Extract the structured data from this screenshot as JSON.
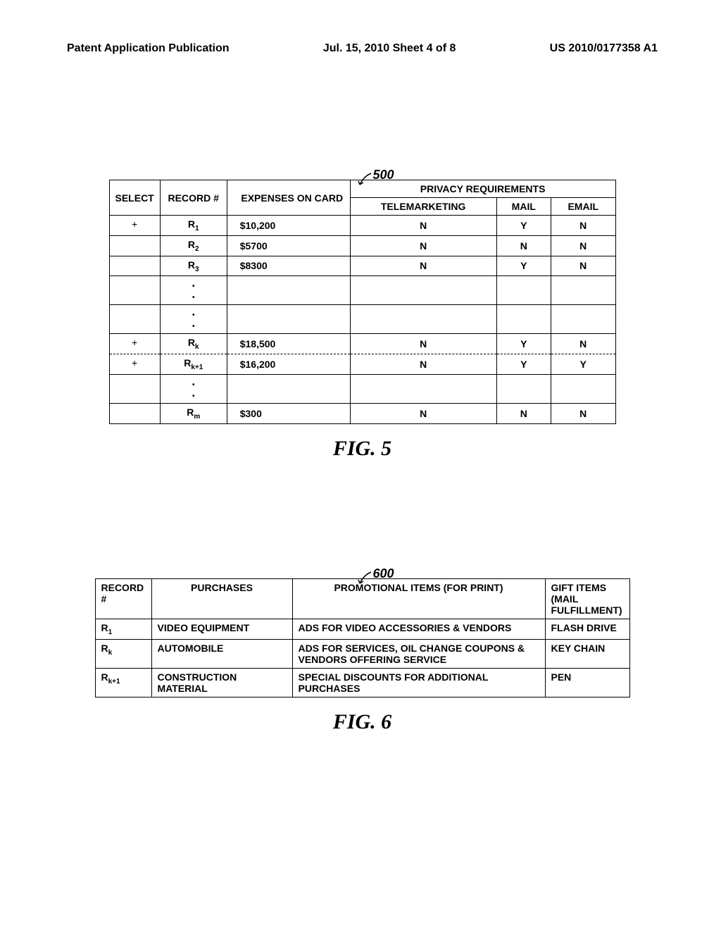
{
  "header": {
    "left": "Patent Application Publication",
    "center": "Jul. 15, 2010  Sheet 4 of 8",
    "right": "US 2010/0177358 A1"
  },
  "fig5": {
    "ref": "500",
    "caption": "FIG. 5",
    "columns": {
      "select": "SELECT",
      "record": "RECORD #",
      "expenses": "EXPENSES ON CARD",
      "privacy": "PRIVACY REQUIREMENTS",
      "tele": "TELEMARKETING",
      "mail": "MAIL",
      "email": "EMAIL"
    },
    "rows": [
      {
        "select": "+",
        "record_base": "R",
        "record_sub": "1",
        "expenses": "$10,200",
        "tele": "N",
        "mail": "Y",
        "email": "N",
        "dashed": true
      },
      {
        "select": "",
        "record_base": "R",
        "record_sub": "2",
        "expenses": "$5700",
        "tele": "N",
        "mail": "N",
        "email": "N",
        "dashed": false
      },
      {
        "select": "",
        "record_base": "R",
        "record_sub": "3",
        "expenses": "$8300",
        "tele": "N",
        "mail": "Y",
        "email": "N",
        "dashed": false
      },
      {
        "select": "",
        "record_base": "",
        "record_sub": "",
        "expenses": "",
        "tele": "",
        "mail": "",
        "email": "",
        "dashed": false,
        "vdots": true
      },
      {
        "select": "",
        "record_base": "",
        "record_sub": "",
        "expenses": "",
        "tele": "",
        "mail": "",
        "email": "",
        "dashed": false,
        "vdots": true
      },
      {
        "select": "+",
        "record_base": "R",
        "record_sub": "k",
        "expenses": "$18,500",
        "tele": "N",
        "mail": "Y",
        "email": "N",
        "dashed": true
      },
      {
        "select": "+",
        "record_base": "R",
        "record_sub": "k+1",
        "expenses": "$16,200",
        "tele": "N",
        "mail": "Y",
        "email": "Y",
        "dashed": true
      },
      {
        "select": "",
        "record_base": "",
        "record_sub": "",
        "expenses": "",
        "tele": "",
        "mail": "",
        "email": "",
        "dashed": false,
        "vdots": true
      },
      {
        "select": "",
        "record_base": "R",
        "record_sub": "m",
        "expenses": "$300",
        "tele": "N",
        "mail": "N",
        "email": "N",
        "dashed": false
      }
    ]
  },
  "fig6": {
    "ref": "600",
    "caption": "FIG. 6",
    "columns": {
      "record": "RECORD #",
      "purchases": "PURCHASES",
      "promo": "PROMOTIONAL ITEMS (FOR PRINT)",
      "gift": "GIFT ITEMS (MAIL FULFILLMENT)"
    },
    "rows": [
      {
        "record_base": "R",
        "record_sub": "1",
        "purchases": "VIDEO EQUIPMENT",
        "promo": "ADS FOR VIDEO ACCESSORIES & VENDORS",
        "gift": "FLASH DRIVE"
      },
      {
        "record_base": "R",
        "record_sub": "k",
        "purchases": "AUTOMOBILE",
        "promo": "ADS FOR SERVICES, OIL CHANGE COUPONS & VENDORS OFFERING SERVICE",
        "gift": "KEY CHAIN"
      },
      {
        "record_base": "R",
        "record_sub": "k+1",
        "purchases": "CONSTRUCTION MATERIAL",
        "promo": "SPECIAL DISCOUNTS FOR ADDITIONAL PURCHASES",
        "gift": "PEN"
      }
    ]
  }
}
